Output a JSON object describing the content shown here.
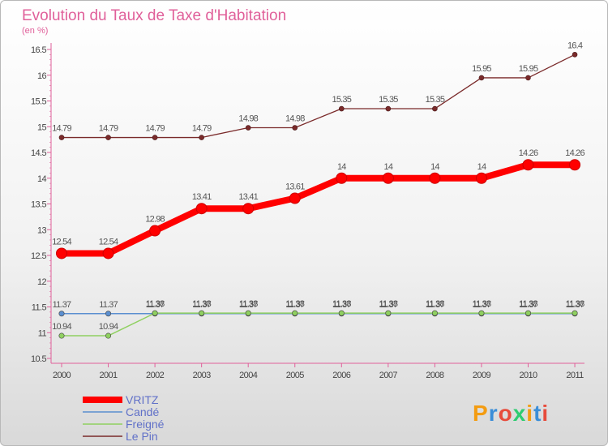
{
  "chart_data": {
    "type": "line",
    "title": "Evolution du Taux de Taxe d'Habitation",
    "subtitle": "(en %)",
    "xlabel": "",
    "ylabel": "",
    "ylim": [
      10.5,
      16.5
    ],
    "yticks": [
      "10.5",
      "11",
      "11.5",
      "12",
      "12.5",
      "13",
      "13.5",
      "14",
      "14.5",
      "15",
      "15.5",
      "16",
      "16.5"
    ],
    "categories": [
      "2000",
      "2001",
      "2002",
      "2003",
      "2004",
      "2005",
      "2006",
      "2007",
      "2008",
      "2009",
      "2010",
      "2011"
    ],
    "grid": false,
    "series": [
      {
        "name": "VRITZ",
        "color": "#ff0000",
        "values": [
          12.54,
          12.54,
          12.98,
          13.41,
          13.41,
          13.61,
          14,
          14,
          14,
          14,
          14.26,
          14.26
        ],
        "labels": [
          "12.54",
          "12.54",
          "12.98",
          "13.41",
          "13.41",
          "13.61",
          "14",
          "14",
          "14",
          "14",
          "14.26",
          "14.26"
        ]
      },
      {
        "name": "Candé",
        "color": "#5b8fd0",
        "values": [
          11.37,
          11.37,
          11.37,
          11.37,
          11.37,
          11.37,
          11.37,
          11.37,
          11.37,
          11.37,
          11.37,
          11.37
        ],
        "labels": [
          "11.37",
          "11.37",
          "11.37",
          "11.37",
          "11.37",
          "11.37",
          "11.37",
          "11.37",
          "11.37",
          "11.37",
          "11.37",
          "11.37"
        ]
      },
      {
        "name": "Freigné",
        "color": "#8fd060",
        "values": [
          10.94,
          10.94,
          11.38,
          11.38,
          11.38,
          11.38,
          11.38,
          11.38,
          11.38,
          11.38,
          11.38,
          11.38
        ],
        "labels": [
          "10.94",
          "10.94",
          "11.38",
          "11.38",
          "11.38",
          "11.38",
          "11.38",
          "11.38",
          "11.38",
          "11.38",
          "11.38",
          "11.38"
        ]
      },
      {
        "name": "Le Pin",
        "color": "#7a2a2a",
        "values": [
          14.79,
          14.79,
          14.79,
          14.79,
          14.98,
          14.98,
          15.35,
          15.35,
          15.35,
          15.95,
          15.95,
          16.4
        ],
        "labels": [
          "14.79",
          "14.79",
          "14.79",
          "14.79",
          "14.98",
          "14.98",
          "15.35",
          "15.35",
          "15.35",
          "15.95",
          "15.95",
          "16.4"
        ]
      }
    ]
  },
  "logo": {
    "text": "Proxiti",
    "letter_colors": [
      "#f39c12",
      "#3b8ed8",
      "#e74c3c",
      "#2ecc71",
      "#f39c12",
      "#3b8ed8",
      "#e74c3c"
    ]
  }
}
